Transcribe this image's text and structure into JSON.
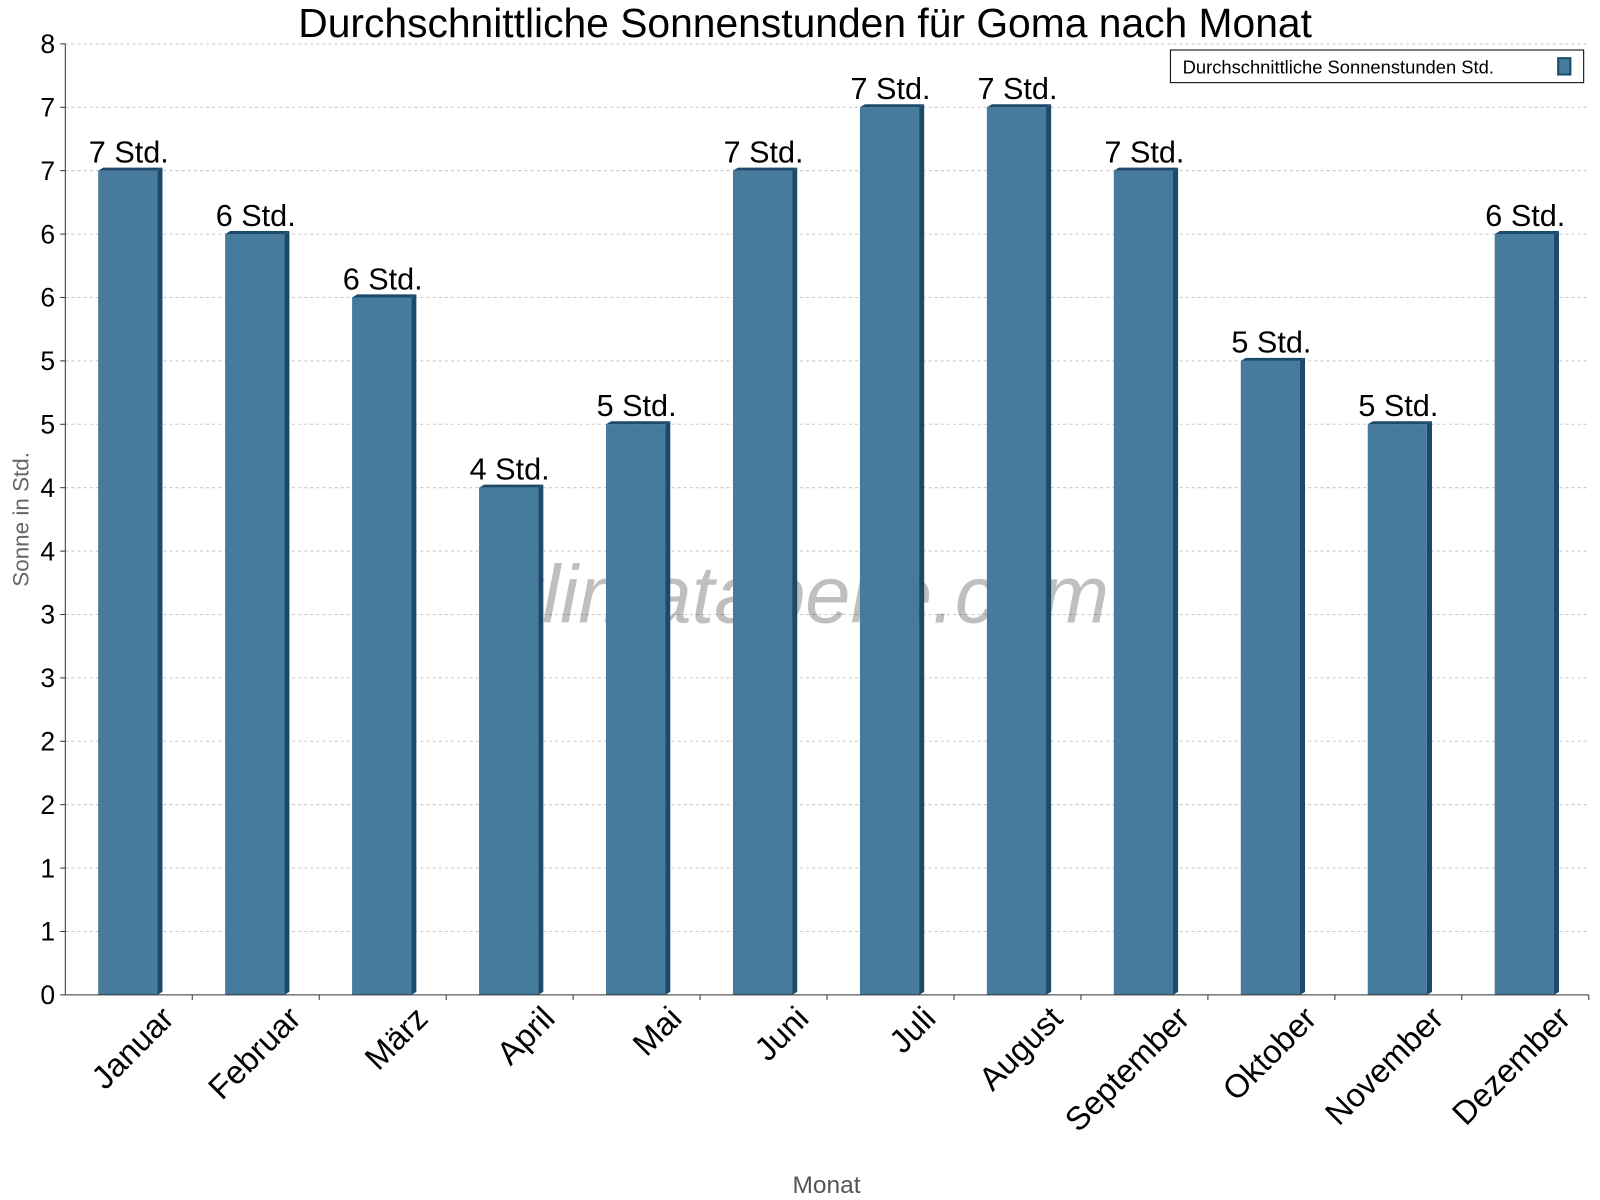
{
  "chart_data": {
    "type": "bar",
    "title": "Durchschnittliche Sonnenstunden für Goma nach Monat",
    "xlabel": "Monat",
    "ylabel": "Sonne in Std.",
    "categories": [
      "Januar",
      "Februar",
      "März",
      "April",
      "Mai",
      "Juni",
      "Juli",
      "August",
      "September",
      "Oktober",
      "November",
      "Dezember"
    ],
    "series": [
      {
        "name": "Durchschnittliche Sonnenstunden Std.",
        "values": [
          6.5,
          6,
          5.5,
          4,
          4.5,
          6.5,
          7,
          7,
          6.5,
          5,
          4.5,
          6
        ],
        "data_labels": [
          "7 Std.",
          "6 Std.",
          "6 Std.",
          "4 Std.",
          "5 Std.",
          "7 Std.",
          "7 Std.",
          "7 Std.",
          "7 Std.",
          "5 Std.",
          "5 Std.",
          "6 Std."
        ]
      }
    ],
    "ylim": [
      0,
      7.5
    ],
    "ytick_labels": [
      "0",
      "1",
      "1",
      "2",
      "2",
      "3",
      "3",
      "4",
      "4",
      "5",
      "5",
      "6",
      "6",
      "7",
      "7",
      "8"
    ],
    "grid": true,
    "legend_position": "top-right",
    "colors": {
      "bar": "#467b9e",
      "bar_side": "#1b4a6b",
      "grid": "#c8c8c8"
    },
    "watermark": "klimatabelle.com"
  }
}
